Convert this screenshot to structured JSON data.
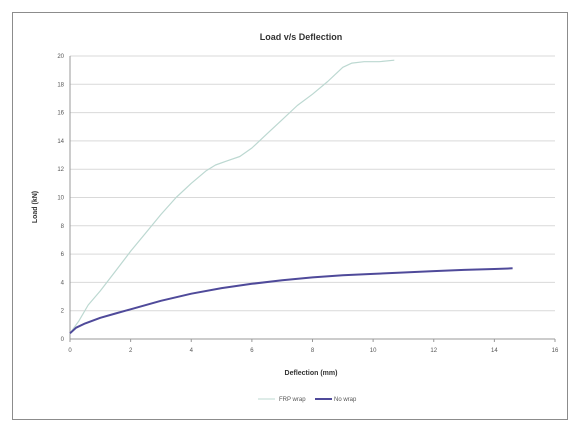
{
  "chart_data": {
    "type": "line",
    "title": "Load v/s Deflection",
    "xlabel": "Deflection (mm)",
    "ylabel": "Load (kN)",
    "xlim": [
      0,
      16
    ],
    "ylim": [
      0,
      20
    ],
    "xticks": [
      0,
      2,
      4,
      6,
      8,
      10,
      12,
      14,
      16
    ],
    "yticks": [
      0,
      2,
      4,
      6,
      8,
      10,
      12,
      14,
      16,
      18,
      20
    ],
    "grid": "horizontal",
    "legend_position": "bottom",
    "series": [
      {
        "name": "FRP wrap",
        "color": "#bcd8d1",
        "points": [
          [
            0,
            0.4
          ],
          [
            0.3,
            1.3
          ],
          [
            0.6,
            2.4
          ],
          [
            1.0,
            3.4
          ],
          [
            1.5,
            4.8
          ],
          [
            2.0,
            6.2
          ],
          [
            2.5,
            7.5
          ],
          [
            3.0,
            8.8
          ],
          [
            3.5,
            10.0
          ],
          [
            4.0,
            11.0
          ],
          [
            4.5,
            11.9
          ],
          [
            4.8,
            12.3
          ],
          [
            5.2,
            12.6
          ],
          [
            5.6,
            12.9
          ],
          [
            6.0,
            13.5
          ],
          [
            6.5,
            14.5
          ],
          [
            7.0,
            15.5
          ],
          [
            7.5,
            16.5
          ],
          [
            8.0,
            17.3
          ],
          [
            8.5,
            18.2
          ],
          [
            9.0,
            19.2
          ],
          [
            9.3,
            19.5
          ],
          [
            9.7,
            19.6
          ],
          [
            10.2,
            19.6
          ],
          [
            10.7,
            19.7
          ]
        ]
      },
      {
        "name": "No wrap",
        "color": "#4f4a9a",
        "points": [
          [
            0,
            0.4
          ],
          [
            0.2,
            0.8
          ],
          [
            0.5,
            1.1
          ],
          [
            1.0,
            1.5
          ],
          [
            1.5,
            1.8
          ],
          [
            2.0,
            2.1
          ],
          [
            3.0,
            2.7
          ],
          [
            4.0,
            3.2
          ],
          [
            5.0,
            3.6
          ],
          [
            6.0,
            3.9
          ],
          [
            7.0,
            4.15
          ],
          [
            8.0,
            4.35
          ],
          [
            9.0,
            4.5
          ],
          [
            10.0,
            4.6
          ],
          [
            11.0,
            4.7
          ],
          [
            12.0,
            4.8
          ],
          [
            13.0,
            4.88
          ],
          [
            14.0,
            4.95
          ],
          [
            14.6,
            5.0
          ]
        ]
      }
    ]
  }
}
